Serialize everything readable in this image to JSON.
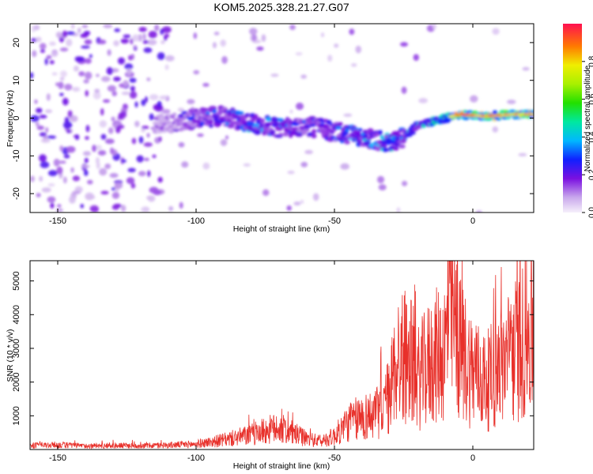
{
  "title": "KOM5.2025.328.21.27.G07",
  "colors": {
    "snr_line": "#e8302a",
    "axis": "#000000",
    "background": "#ffffff"
  },
  "chart_data": [
    {
      "type": "heatmap",
      "xlabel": "Height of straight line (km)",
      "ylabel": "Frequency (Hz)",
      "xlim": [
        -160,
        22
      ],
      "ylim": [
        -25,
        25
      ],
      "xticks": [
        -150,
        -100,
        -50,
        0
      ],
      "yticks": [
        -20,
        -10,
        0,
        10,
        20
      ],
      "colorbar": {
        "label": "Normalized spectral amplitude",
        "range": [
          0,
          1
        ],
        "ticks": [
          "0.0",
          "0.2",
          "0.4",
          "0.6",
          "0.8"
        ],
        "tick_values": [
          0.0,
          0.2,
          0.4,
          0.6,
          0.8
        ]
      },
      "ridge_trace": [
        {
          "x": -110,
          "y": -1.5,
          "amp": 0.15
        },
        {
          "x": -100,
          "y": 0.0,
          "amp": 0.3
        },
        {
          "x": -90,
          "y": 0.5,
          "amp": 0.35
        },
        {
          "x": -80,
          "y": -1.5,
          "amp": 0.4
        },
        {
          "x": -70,
          "y": -2.5,
          "amp": 0.35
        },
        {
          "x": -60,
          "y": -2.0,
          "amp": 0.3
        },
        {
          "x": -50,
          "y": -3.5,
          "amp": 0.35
        },
        {
          "x": -40,
          "y": -5.0,
          "amp": 0.4
        },
        {
          "x": -30,
          "y": -6.5,
          "amp": 0.45
        },
        {
          "x": -25,
          "y": -5.0,
          "amp": 0.4
        },
        {
          "x": -20,
          "y": -2.0,
          "amp": 0.45
        },
        {
          "x": -10,
          "y": 0.0,
          "amp": 0.6
        },
        {
          "x": -5,
          "y": 1.0,
          "amp": 0.9
        },
        {
          "x": 5,
          "y": 0.5,
          "amp": 0.85
        },
        {
          "x": 15,
          "y": 1.0,
          "amp": 0.8
        },
        {
          "x": 22,
          "y": 1.0,
          "amp": 0.8
        }
      ]
    },
    {
      "type": "line",
      "xlabel": "Height of straight line (km)",
      "ylabel": "SNR (10 * v/v)",
      "xlim": [
        -160,
        22
      ],
      "ylim": [
        0,
        5600
      ],
      "xticks": [
        -150,
        -100,
        -50,
        0
      ],
      "yticks": [
        1000,
        2000,
        3000,
        4000,
        5000
      ],
      "series": [
        {
          "name": "SNR",
          "x": [
            -160,
            -150,
            -140,
            -130,
            -120,
            -110,
            -100,
            -90,
            -80,
            -75,
            -70,
            -65,
            -60,
            -55,
            -50,
            -45,
            -40,
            -35,
            -30,
            -28,
            -25,
            -22,
            -20,
            -17,
            -15,
            -10,
            -8,
            -5,
            0,
            5,
            10,
            15,
            20,
            22
          ],
          "y": [
            150,
            170,
            130,
            150,
            140,
            160,
            200,
            350,
            550,
            700,
            800,
            600,
            400,
            300,
            500,
            1000,
            1200,
            1300,
            2000,
            3200,
            3500,
            3200,
            2600,
            3000,
            3300,
            3700,
            5400,
            3800,
            2900,
            2500,
            3100,
            3600,
            4200,
            4300
          ]
        }
      ]
    }
  ]
}
